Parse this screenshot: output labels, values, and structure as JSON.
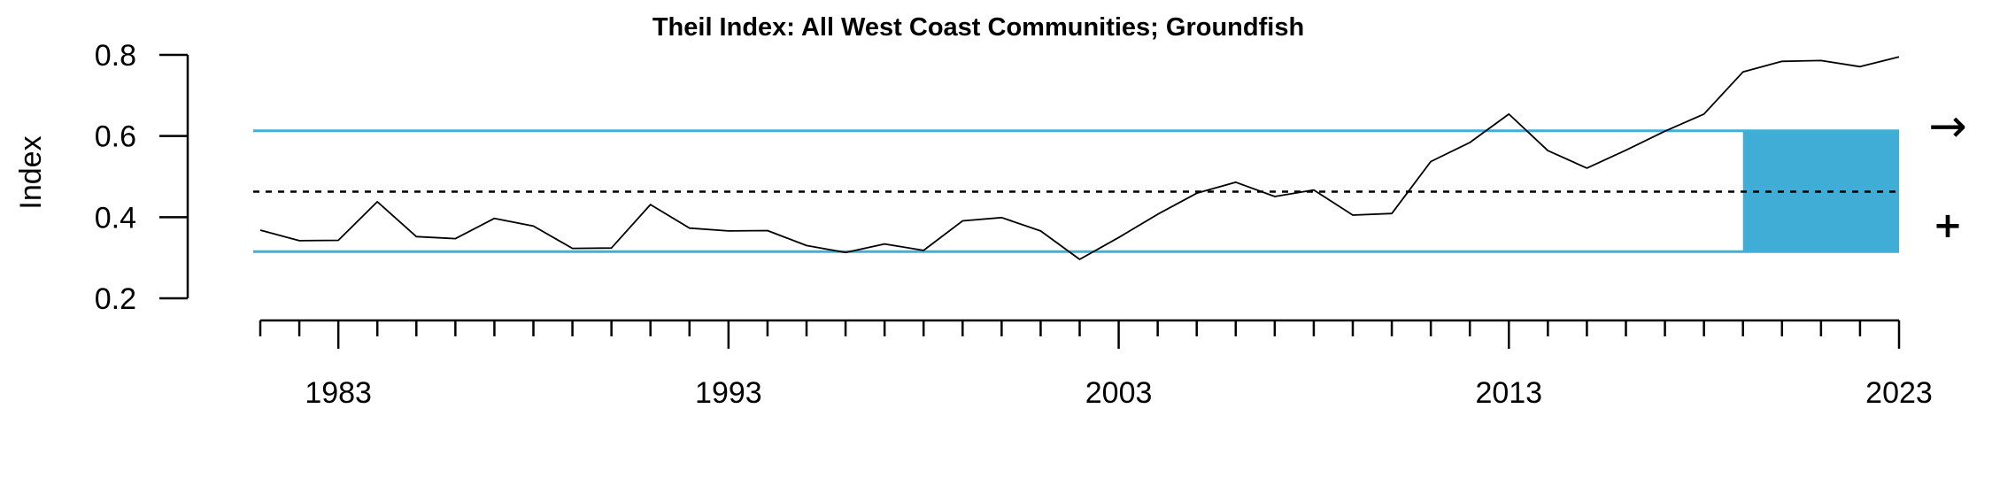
{
  "chart_data": {
    "type": "line",
    "title": "Theil Index: All West Coast Communities; Groundfish",
    "xlabel": "",
    "ylabel": "Index",
    "xlim": [
      1981,
      2023
    ],
    "ylim": [
      0.2,
      0.8
    ],
    "x_tick_labels": [
      "1983",
      "1993",
      "2003",
      "2013",
      "2023"
    ],
    "y_tick_labels": [
      "0.2",
      "0.4",
      "0.6",
      "0.8"
    ],
    "grid": false,
    "series": [
      {
        "x": [
          1981,
          1982,
          1983,
          1984,
          1985,
          1986,
          1987,
          1988,
          1989,
          1990,
          1991,
          1992,
          1993,
          1994,
          1995,
          1996,
          1997,
          1998,
          1999,
          2000,
          2001,
          2002,
          2003,
          2004,
          2005,
          2006,
          2007,
          2008,
          2009,
          2010,
          2011,
          2012,
          2013,
          2014,
          2015,
          2016,
          2017,
          2018,
          2019,
          2020,
          2021,
          2022,
          2023
        ],
        "values": [
          0.368,
          0.342,
          0.343,
          0.438,
          0.352,
          0.347,
          0.397,
          0.378,
          0.323,
          0.324,
          0.431,
          0.373,
          0.366,
          0.367,
          0.33,
          0.313,
          0.334,
          0.318,
          0.391,
          0.399,
          0.366,
          0.296,
          0.35,
          0.407,
          0.459,
          0.486,
          0.451,
          0.467,
          0.405,
          0.409,
          0.537,
          0.584,
          0.654,
          0.564,
          0.521,
          0.565,
          0.612,
          0.654,
          0.758,
          0.784,
          0.786,
          0.771,
          0.795
        ]
      }
    ],
    "mean": 0.463,
    "upper_sd": 0.613,
    "lower_sd": 0.315,
    "highlight_range": [
      2019,
      2023
    ],
    "trend_symbol": "+",
    "direction_symbol": "→",
    "colors": {
      "line": "#000000",
      "sd_lines": "#40B0D8",
      "highlight": "#40ADD6",
      "mean_line": "#000000"
    }
  }
}
